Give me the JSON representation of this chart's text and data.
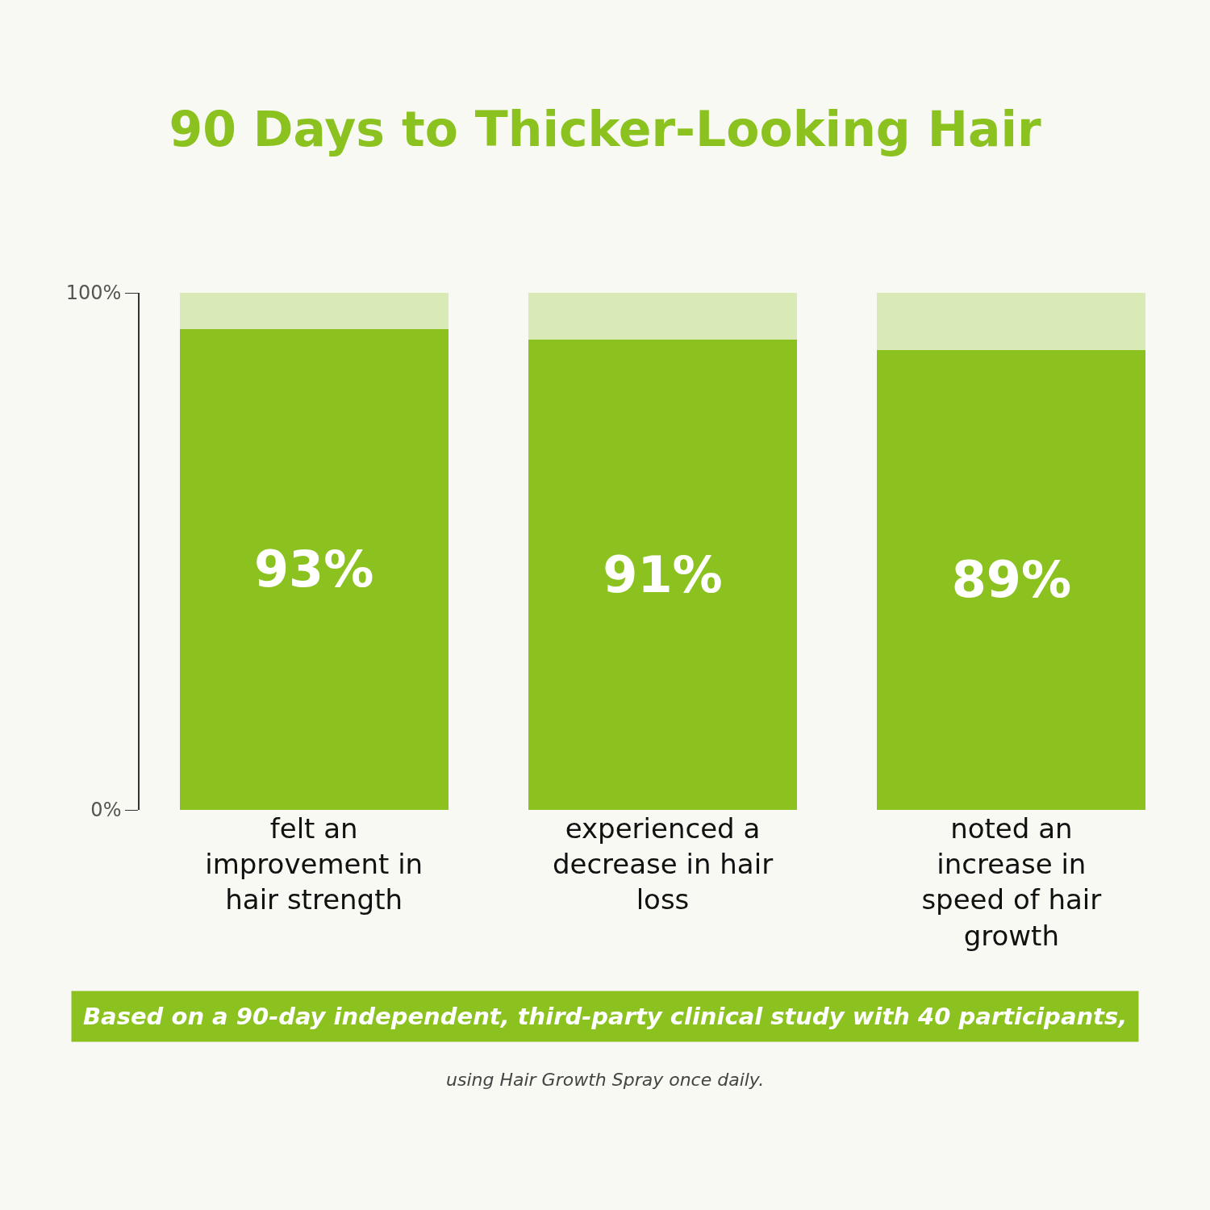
{
  "chart_data": {
    "type": "bar",
    "title": "90 Days to Thicker-Looking Hair",
    "categories": [
      "felt an improvement in hair strength",
      "experienced a decrease in hair loss",
      "noted an increase in speed of hair growth"
    ],
    "series": [
      {
        "color": "#8bc220",
        "values": [
          93,
          91,
          89
        ],
        "value_labels": [
          "93%",
          "91%",
          "89%"
        ]
      },
      {
        "color": "#d9eab6",
        "values": [
          7,
          9,
          11
        ]
      }
    ],
    "stacked": true,
    "ylim": [
      0,
      100
    ],
    "yticks": [
      {
        "value": 0,
        "label": "0%"
      },
      {
        "value": 100,
        "label": "100%"
      }
    ],
    "annotations": [
      "Based on a 90-day independent, third-party clinical study with 40 participants,",
      "using Hair Growth Spray once daily."
    ]
  }
}
